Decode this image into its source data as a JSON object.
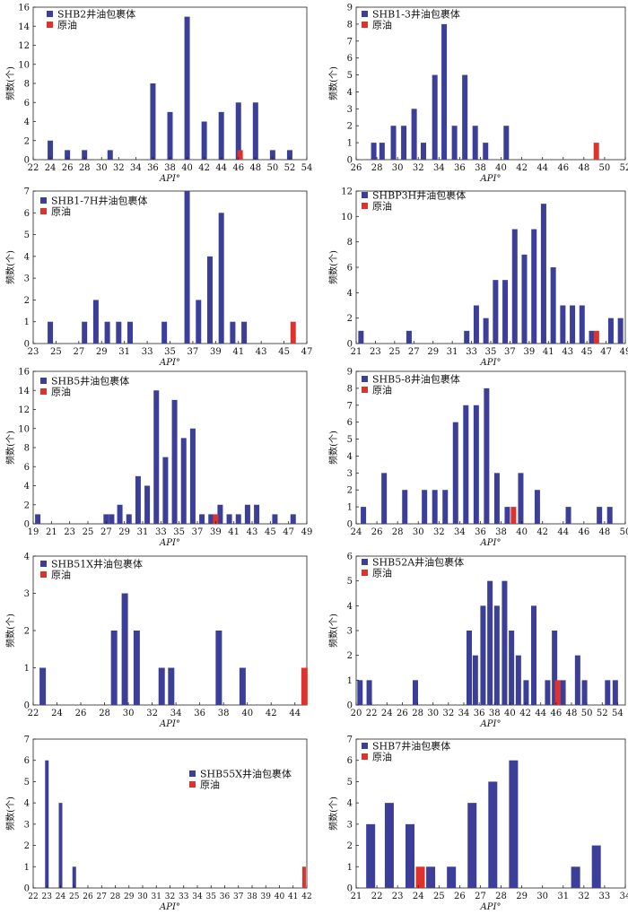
{
  "colors": {
    "inclusion": "#3b3f9a",
    "crude": "#e0322d"
  },
  "chart_data": [
    {
      "type": "bar",
      "legend": [
        "SHB2井油包裹体",
        "原油"
      ],
      "xlabel": "API°",
      "ylabel": "频数(个)",
      "xlim": [
        22,
        54
      ],
      "ylim": [
        0,
        16
      ],
      "xticks": [
        22,
        24,
        26,
        28,
        30,
        32,
        34,
        36,
        38,
        40,
        42,
        44,
        46,
        48,
        50,
        52,
        54
      ],
      "yticks": [
        0,
        2,
        4,
        6,
        8,
        10,
        12,
        14,
        16
      ],
      "series": [
        {
          "name": "SHB2井油包裹体",
          "x": [
            24,
            26,
            28,
            31,
            36,
            38,
            40,
            42,
            44,
            46,
            48,
            50,
            52
          ],
          "values": [
            2,
            1,
            1,
            1,
            8,
            5,
            15,
            4,
            5,
            6,
            6,
            1,
            1
          ]
        },
        {
          "name": "原油",
          "x": [
            46.2
          ],
          "values": [
            1
          ]
        }
      ]
    },
    {
      "type": "bar",
      "legend": [
        "SHB1-3井油包裹体",
        "原油"
      ],
      "xlabel": "API°",
      "ylabel": "频数(个)",
      "xlim": [
        26,
        52
      ],
      "ylim": [
        0,
        9
      ],
      "xticks": [
        26,
        28,
        30,
        32,
        34,
        36,
        38,
        40,
        42,
        44,
        46,
        48,
        50,
        52
      ],
      "yticks": [
        0,
        1,
        2,
        3,
        4,
        5,
        6,
        7,
        8,
        9
      ],
      "series": [
        {
          "name": "SHB1-3井油包裹体",
          "x": [
            27.7,
            28.5,
            29.6,
            30.6,
            31.6,
            32.5,
            33.6,
            34.5,
            35.5,
            36.5,
            37.5,
            38.5,
            40.5
          ],
          "values": [
            1,
            1,
            2,
            2,
            3,
            1,
            5,
            8,
            2,
            5,
            2,
            1,
            2
          ]
        },
        {
          "name": "原油",
          "x": [
            49.2
          ],
          "values": [
            1
          ]
        }
      ]
    },
    {
      "type": "bar",
      "legend": [
        "SHB1-7H井油包裹体",
        "原油"
      ],
      "xlabel": "API°",
      "ylabel": "频数(个)",
      "xlim": [
        23,
        47
      ],
      "ylim": [
        0,
        7
      ],
      "xticks": [
        23,
        25,
        27,
        29,
        31,
        33,
        35,
        37,
        39,
        41,
        43,
        45,
        47
      ],
      "yticks": [
        0,
        1,
        2,
        3,
        4,
        5,
        6,
        7
      ],
      "series": [
        {
          "name": "SHB1-7H井油包裹体",
          "x": [
            24.5,
            27.5,
            28.5,
            29.5,
            30.5,
            31.5,
            34.5,
            36.5,
            37.5,
            38.5,
            39.5,
            40.5,
            41.5
          ],
          "values": [
            1,
            1,
            2,
            1,
            1,
            1,
            1,
            7,
            2,
            4,
            6,
            1,
            1
          ]
        },
        {
          "name": "原油",
          "x": [
            45.8
          ],
          "values": [
            1
          ]
        }
      ]
    },
    {
      "type": "bar",
      "legend": [
        "SHBP3H井油包裹体",
        "原油"
      ],
      "xlabel": "API°",
      "ylabel": "频数(个)",
      "xlim": [
        21,
        49
      ],
      "ylim": [
        0,
        12
      ],
      "xticks": [
        21,
        23,
        25,
        27,
        29,
        31,
        33,
        35,
        37,
        39,
        41,
        43,
        45,
        47,
        49
      ],
      "yticks": [
        0,
        2,
        4,
        6,
        8,
        10,
        12
      ],
      "series": [
        {
          "name": "SHBP3H井油包裹体",
          "x": [
            21.5,
            26.5,
            32.5,
            33.5,
            34.5,
            35.5,
            36.5,
            37.5,
            38.5,
            39.5,
            40.5,
            41.5,
            42.5,
            43.5,
            44.5,
            45.5,
            47.5,
            48.5
          ],
          "values": [
            1,
            1,
            1,
            3,
            2,
            5,
            5,
            9,
            7,
            9,
            11,
            6,
            3,
            3,
            3,
            1,
            2,
            2
          ]
        },
        {
          "name": "原油",
          "x": [
            46
          ],
          "values": [
            1
          ]
        }
      ]
    },
    {
      "type": "bar",
      "legend": [
        "SHB5井油包裹体",
        "原油"
      ],
      "xlabel": "API°",
      "ylabel": "频数(个)",
      "xlim": [
        19,
        49
      ],
      "ylim": [
        0,
        16
      ],
      "xticks": [
        19,
        21,
        23,
        25,
        27,
        29,
        31,
        33,
        35,
        37,
        39,
        41,
        43,
        45,
        47,
        49
      ],
      "yticks": [
        0,
        2,
        4,
        6,
        8,
        10,
        12,
        14,
        16
      ],
      "series": [
        {
          "name": "SHB5井油包裹体",
          "x": [
            19.5,
            27,
            27.6,
            28.5,
            29.5,
            30.5,
            31.5,
            32.5,
            33.5,
            34.5,
            35.5,
            36.5,
            37.5,
            38.5,
            39.5,
            40.5,
            41.5,
            42.5,
            43.5,
            45.5,
            47.5
          ],
          "values": [
            1,
            1,
            1,
            2,
            1,
            5,
            4,
            14,
            7,
            13,
            9,
            10,
            1,
            1,
            2,
            1,
            1,
            2,
            2,
            1,
            1
          ]
        },
        {
          "name": "原油",
          "x": [
            39
          ],
          "values": [
            1
          ]
        }
      ]
    },
    {
      "type": "bar",
      "legend": [
        "SHB5-8井油包裹体",
        "原油"
      ],
      "xlabel": "API°",
      "ylabel": "频数(个)",
      "xlim": [
        24,
        50
      ],
      "ylim": [
        0,
        9
      ],
      "xticks": [
        24,
        26,
        28,
        30,
        32,
        34,
        36,
        38,
        40,
        42,
        44,
        46,
        48,
        50
      ],
      "yticks": [
        0,
        1,
        2,
        3,
        4,
        5,
        6,
        7,
        8,
        9
      ],
      "series": [
        {
          "name": "SHB5-8井油包裹体",
          "x": [
            24.7,
            26.7,
            28.7,
            30.6,
            31.6,
            32.6,
            33.6,
            34.6,
            35.6,
            36.6,
            37.6,
            38.6,
            39.9,
            41.5,
            44.5,
            47.5,
            48.5
          ],
          "values": [
            1,
            3,
            2,
            2,
            2,
            2,
            6,
            7,
            7,
            8,
            3,
            1,
            3,
            2,
            1,
            1,
            1
          ]
        },
        {
          "name": "原油",
          "x": [
            39.2
          ],
          "values": [
            1
          ]
        }
      ]
    },
    {
      "type": "bar",
      "legend": [
        "SHB51X井油包裹体",
        "原油"
      ],
      "xlabel": "API°",
      "ylabel": "频数(个)",
      "xlim": [
        22,
        45
      ],
      "ylim": [
        0,
        4
      ],
      "xticks": [
        22,
        24,
        26,
        28,
        30,
        32,
        34,
        36,
        38,
        40,
        42,
        44
      ],
      "yticks": [
        0,
        1,
        2,
        3,
        4
      ],
      "series": [
        {
          "name": "SHB51X井油包裹体",
          "x": [
            22.8,
            28.8,
            29.7,
            30.7,
            32.8,
            33.6,
            37.6,
            39.6
          ],
          "values": [
            1,
            2,
            3,
            2,
            1,
            1,
            2,
            1
          ]
        },
        {
          "name": "原油",
          "x": [
            44.8
          ],
          "values": [
            1
          ]
        }
      ]
    },
    {
      "type": "bar",
      "legend": [
        "SHB52A井油包裹体",
        "原油"
      ],
      "xlabel": "API°",
      "ylabel": "频数(个)",
      "xlim": [
        20,
        55
      ],
      "ylim": [
        0,
        6
      ],
      "xticks": [
        20,
        22,
        24,
        26,
        28,
        30,
        32,
        34,
        36,
        38,
        40,
        42,
        44,
        46,
        48,
        50,
        52,
        54
      ],
      "yticks": [
        0,
        1,
        2,
        3,
        4,
        5,
        6
      ],
      "series": [
        {
          "name": "SHB52A井油包裹体",
          "x": [
            20.5,
            21.7,
            27.7,
            34.7,
            35.5,
            36.5,
            37.4,
            38.3,
            39.3,
            40.2,
            41.1,
            42.1,
            43.1,
            44.9,
            45.8,
            46.9,
            48.8,
            49.7,
            52.7,
            53.7
          ],
          "values": [
            1,
            1,
            1,
            3,
            2,
            4,
            5,
            4,
            5,
            3,
            2,
            1,
            4,
            1,
            3,
            1,
            2,
            1,
            1,
            1
          ]
        },
        {
          "name": "原油",
          "x": [
            46.2
          ],
          "values": [
            1
          ]
        }
      ]
    },
    {
      "type": "bar",
      "legend": [
        "SHB55X井油包裹体",
        "原油"
      ],
      "xlabel": "API°",
      "ylabel": "频数(个)",
      "xlim": [
        22,
        42
      ],
      "ylim": [
        0,
        7
      ],
      "xticks": [
        22,
        23,
        24,
        25,
        26,
        27,
        28,
        29,
        30,
        31,
        32,
        33,
        34,
        35,
        36,
        37,
        38,
        39,
        40,
        41,
        42
      ],
      "yticks": [
        0,
        1,
        2,
        3,
        4,
        5,
        6,
        7
      ],
      "series": [
        {
          "name": "SHB55X井油包裹体",
          "x": [
            23,
            24,
            25
          ],
          "values": [
            6,
            4,
            1
          ]
        },
        {
          "name": "原油",
          "x": [
            41.8
          ],
          "values": [
            1
          ]
        }
      ]
    },
    {
      "type": "bar",
      "legend": [
        "SHB7井油包裹体",
        "原油"
      ],
      "xlabel": "API°",
      "ylabel": "频数(个)",
      "xlim": [
        21,
        34
      ],
      "ylim": [
        0,
        7
      ],
      "xticks": [
        21,
        22,
        23,
        24,
        25,
        26,
        27,
        28,
        29,
        30,
        31,
        32,
        33,
        34
      ],
      "yticks": [
        0,
        1,
        2,
        3,
        4,
        5,
        6,
        7
      ],
      "series": [
        {
          "name": "SHB7井油包裹体",
          "x": [
            21.7,
            22.6,
            23.6,
            24.6,
            25.6,
            26.6,
            27.6,
            28.6,
            31.6,
            32.6
          ],
          "values": [
            3,
            4,
            3,
            1,
            1,
            4,
            5,
            6,
            1,
            2
          ]
        },
        {
          "name": "原油",
          "x": [
            24.1
          ],
          "values": [
            1
          ]
        }
      ]
    }
  ]
}
